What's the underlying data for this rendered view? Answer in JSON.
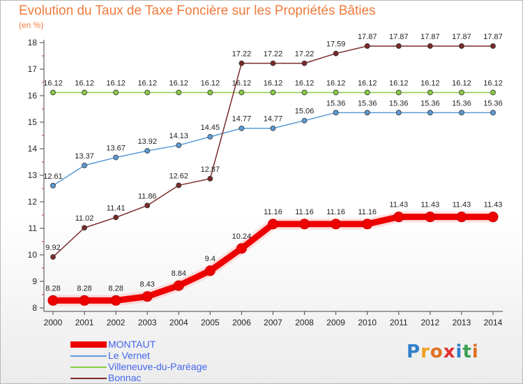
{
  "title": "Evolution du Taux de Taxe Foncière sur les Propriétés Bâties",
  "unit_label": "(en %)",
  "logo": {
    "text": "Proxiti",
    "letter_colors": [
      "#2f7fc8",
      "#f0a020",
      "#e07020",
      "#e03030",
      "#2f7fc8",
      "#3aa050",
      "#e07020"
    ]
  },
  "chart_data": {
    "type": "line",
    "x": [
      "2000",
      "2001",
      "2002",
      "2003",
      "2004",
      "2005",
      "2006",
      "2007",
      "2008",
      "2009",
      "2010",
      "2011",
      "2012",
      "2013",
      "2014"
    ],
    "ylim": [
      8,
      18
    ],
    "yticks": [
      8,
      9,
      10,
      11,
      12,
      13,
      14,
      15,
      16,
      17,
      18
    ],
    "grid": false,
    "legend_position": "bottom-left",
    "series": [
      {
        "name": "Villeneuve-du-Paréage",
        "color": "#88cc44",
        "values": [
          16.12,
          16.12,
          16.12,
          16.12,
          16.12,
          16.12,
          16.12,
          16.12,
          16.12,
          16.12,
          16.12,
          16.12,
          16.12,
          16.12,
          16.12
        ],
        "labels": [
          "16.12",
          "16.12",
          "16.12",
          "16.12",
          "16.12",
          "16.12",
          "16.12",
          "16.12",
          "16.12",
          "16.12",
          "16.12",
          "16.12",
          "16.12",
          "16.12",
          "16.12"
        ]
      },
      {
        "name": "Le Vernet",
        "color": "#5b9bd5",
        "values": [
          12.61,
          13.37,
          13.67,
          13.92,
          14.13,
          14.45,
          14.77,
          14.77,
          15.06,
          15.36,
          15.36,
          15.36,
          15.36,
          15.36,
          15.36
        ],
        "labels": [
          "12.61",
          "13.37",
          "13.67",
          "13.92",
          "14.13",
          "14.45",
          "14.77",
          "14.77",
          "15.06",
          "15.36",
          "15.36",
          "15.36",
          "15.36",
          "15.36",
          "15.36"
        ]
      },
      {
        "name": "Bonnac",
        "color": "#7a2a2a",
        "values": [
          9.92,
          11.02,
          11.41,
          11.86,
          12.62,
          12.87,
          17.22,
          17.22,
          17.22,
          17.59,
          17.87,
          17.87,
          17.87,
          17.87,
          17.87
        ],
        "labels": [
          "9.92",
          "11.02",
          "11.41",
          "11.86",
          "12.62",
          "12.87",
          "17.22",
          "17.22",
          "17.22",
          "17.59",
          "17.87",
          "17.87",
          "17.87",
          "17.87",
          "17.87"
        ]
      },
      {
        "name": "MONTAUT",
        "color": "#ee0000",
        "values": [
          8.28,
          8.28,
          8.28,
          8.43,
          8.84,
          9.4,
          10.24,
          11.16,
          11.16,
          11.16,
          11.16,
          11.43,
          11.43,
          11.43,
          11.43
        ],
        "labels": [
          "8.28",
          "8.28",
          "8.28",
          "8.43",
          "8.84",
          "9.4",
          "10.24",
          "11.16",
          "11.16",
          "11.16",
          "11.16",
          "11.43",
          "11.43",
          "11.43",
          "11.43"
        ]
      }
    ],
    "legend": [
      "MONTAUT",
      "Le Vernet",
      "Villeneuve-du-Paréage",
      "Bonnac"
    ]
  }
}
